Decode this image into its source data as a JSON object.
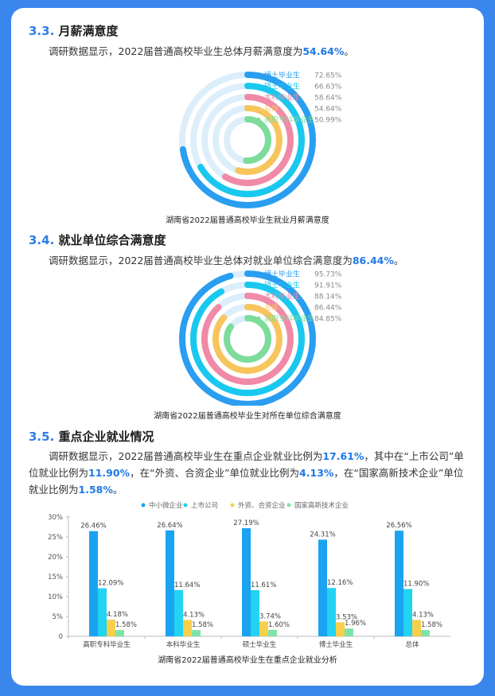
{
  "section_33": {
    "number": "3.3.",
    "title": "月薪满意度",
    "para_pre": "调研数据显示，2022届普通高校毕业生总体月薪满意度为",
    "para_hl": "54.64%",
    "para_post": "。",
    "caption": "湖南省2022届普通高校毕业生就业月薪满意度"
  },
  "section_34": {
    "number": "3.4.",
    "title": "就业单位综合满意度",
    "para_pre": "调研数据显示，2022届普通高校毕业生总体对就业单位综合满意度为",
    "para_hl": "86.44%",
    "para_post": "。",
    "caption": "湖南省2022届普通高校毕业生对所在单位综合满意度"
  },
  "section_35": {
    "number": "3.5.",
    "title": "重点企业就业情况",
    "p1": "调研数据显示，2022届普通高校毕业生在重点企业就业比例为",
    "h1": "17.61%",
    "p2": "，其中在“上市公司”单位就业比例为",
    "h2": "11.90%",
    "p3": "，在“外资、合资企业”单位就业比例为",
    "h3": "4.13%",
    "p4": "，在“国家高新技术企业”单位就业比例为",
    "h4": "1.58%",
    "p5": "。",
    "caption": "湖南省2022届普通高校毕业生在重点企业就业分析"
  },
  "chart_data": [
    {
      "type": "radial-bar",
      "series": [
        {
          "name": "博士毕业生",
          "value": 72.65,
          "label": "72.65%",
          "color": "#2a9ef0"
        },
        {
          "name": "硕士毕业生",
          "value": 66.63,
          "label": "66.63%",
          "color": "#19c8ef"
        },
        {
          "name": "本科毕业生",
          "value": 58.64,
          "label": "58.64%",
          "color": "#f08aa6"
        },
        {
          "name": "总体",
          "value": 54.64,
          "label": "54.64%",
          "color": "#f8c45c"
        },
        {
          "name": "高职专科毕业生",
          "value": 50.99,
          "label": "50.99%",
          "color": "#7ddc9b"
        }
      ],
      "track_color": "#ddeefb"
    },
    {
      "type": "radial-bar",
      "series": [
        {
          "name": "博士毕业生",
          "value": 95.73,
          "label": "95.73%",
          "color": "#2a9ef0"
        },
        {
          "name": "硕士毕业生",
          "value": 91.91,
          "label": "91.91%",
          "color": "#19c8ef"
        },
        {
          "name": "本科毕业生",
          "value": 88.14,
          "label": "88.14%",
          "color": "#f08aa6"
        },
        {
          "name": "总体",
          "value": 86.44,
          "label": "86.44%",
          "color": "#f8c45c"
        },
        {
          "name": "高职专科毕业生",
          "value": 84.85,
          "label": "84.85%",
          "color": "#7ddc9b"
        }
      ],
      "track_color": "#ddeefb"
    },
    {
      "type": "bar",
      "categories": [
        "高职专科毕业生",
        "本科毕业生",
        "硕士毕业生",
        "博士毕业生",
        "总体"
      ],
      "series": [
        {
          "name": "中小微企业",
          "color": "#1aa3f0",
          "values": [
            26.46,
            26.64,
            27.19,
            24.31,
            26.56
          ],
          "labels": [
            "26.46%",
            "26.64%",
            "27.19%",
            "24.31%",
            "26.56%"
          ]
        },
        {
          "name": "上市公司",
          "color": "#22d3f2",
          "values": [
            12.09,
            11.64,
            11.61,
            12.16,
            11.9
          ],
          "labels": [
            "12.09%",
            "11.64%",
            "11.61%",
            "12.16%",
            "11.90%"
          ]
        },
        {
          "name": "外资、合资企业",
          "color": "#f6d04d",
          "values": [
            4.18,
            4.13,
            3.74,
            3.53,
            4.13
          ],
          "labels": [
            "4.18%",
            "4.13%",
            "3.74%",
            "3.53%",
            "4.13%"
          ]
        },
        {
          "name": "国家高新技术企业",
          "color": "#7fe3a8",
          "values": [
            1.58,
            1.58,
            1.6,
            1.96,
            1.58
          ],
          "labels": [
            "1.58%",
            "1.58%",
            "1.60%",
            "1.96%",
            "1.58%"
          ]
        }
      ],
      "yticks": [
        "0",
        "5%",
        "10%",
        "15%",
        "20%",
        "25%",
        "30%"
      ],
      "ylim": [
        0,
        30
      ],
      "legend": "top-center",
      "grid": false
    }
  ]
}
